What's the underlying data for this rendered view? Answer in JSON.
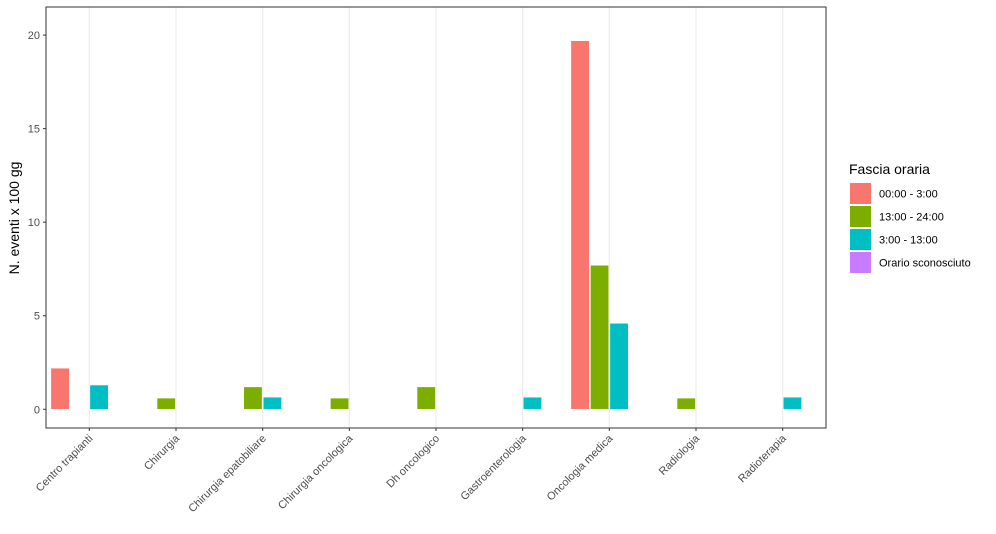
{
  "chart_data": {
    "type": "bar",
    "title": "",
    "xlabel": "",
    "ylabel": "N. eventi x 100 gg",
    "ylim": [
      -1,
      21.5
    ],
    "yticks": [
      0,
      5,
      10,
      15,
      20
    ],
    "grid": true,
    "legend_position": "right",
    "legend_title": "Fascia oraria",
    "categories": [
      "Centro trapianti",
      "Chirurgia",
      "Chirurgia epatobiliare",
      "Chirurgia oncologica",
      "Dh oncologico",
      "Gastroenterologia",
      "Oncologia medica",
      "Radiologia",
      "Radioterapia"
    ],
    "series": [
      {
        "name": "00:00 - 3:00",
        "color": "#F8766D",
        "values": [
          2.2,
          null,
          null,
          null,
          null,
          null,
          19.7,
          null,
          null
        ]
      },
      {
        "name": "13:00 - 24:00",
        "color": "#7CAE00",
        "values": [
          null,
          0.6,
          1.2,
          0.6,
          1.2,
          null,
          7.7,
          0.6,
          null
        ]
      },
      {
        "name": "3:00 - 13:00",
        "color": "#00BFC4",
        "values": [
          1.3,
          null,
          0.65,
          null,
          null,
          0.65,
          4.6,
          null,
          0.65
        ]
      },
      {
        "name": "Orario sconosciuto",
        "color": "#C77CFF",
        "values": [
          null,
          null,
          null,
          null,
          null,
          null,
          null,
          null,
          null
        ]
      }
    ]
  }
}
